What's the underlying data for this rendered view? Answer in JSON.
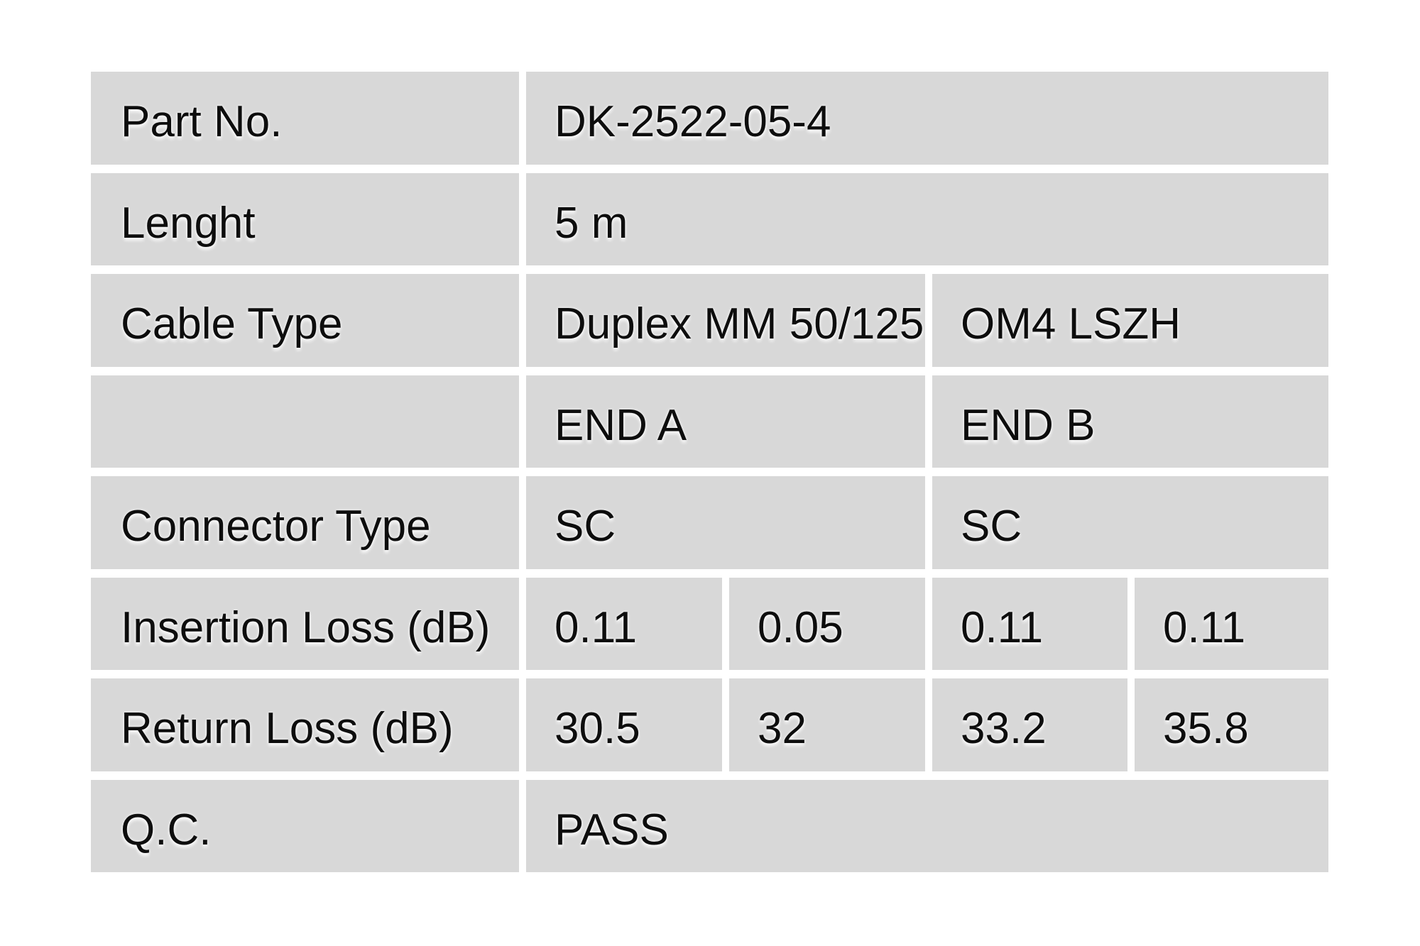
{
  "table": {
    "cell_color": "#d8d8d8",
    "background_color": "#ffffff",
    "text_color": "#0d0d0d",
    "rows": [
      {
        "label": "Part No.",
        "values": [
          {
            "text": "DK-2522-05-4",
            "span": 4
          }
        ]
      },
      {
        "label": "Lenght",
        "values": [
          {
            "text": "5 m",
            "span": 4
          }
        ]
      },
      {
        "label": "Cable Type",
        "values": [
          {
            "text": "Duplex MM 50/125",
            "span": 2
          },
          {
            "text": "OM4 LSZH",
            "span": 2
          }
        ]
      },
      {
        "label": "",
        "values": [
          {
            "text": "END A",
            "span": 2
          },
          {
            "text": "END B",
            "span": 2
          }
        ]
      },
      {
        "label": "Connector Type",
        "values": [
          {
            "text": "SC",
            "span": 2
          },
          {
            "text": "SC",
            "span": 2
          }
        ]
      },
      {
        "label": "Insertion Loss (dB)",
        "values": [
          {
            "text": "0.11",
            "span": 1
          },
          {
            "text": "0.05",
            "span": 1
          },
          {
            "text": "0.11",
            "span": 1
          },
          {
            "text": "0.11",
            "span": 1
          }
        ]
      },
      {
        "label": "Return Loss (dB)",
        "values": [
          {
            "text": "30.5",
            "span": 1
          },
          {
            "text": "32",
            "span": 1
          },
          {
            "text": "33.2",
            "span": 1
          },
          {
            "text": "35.8",
            "span": 1
          }
        ]
      },
      {
        "label": "Q.C.",
        "values": [
          {
            "text": "PASS",
            "span": 4
          }
        ]
      }
    ]
  }
}
